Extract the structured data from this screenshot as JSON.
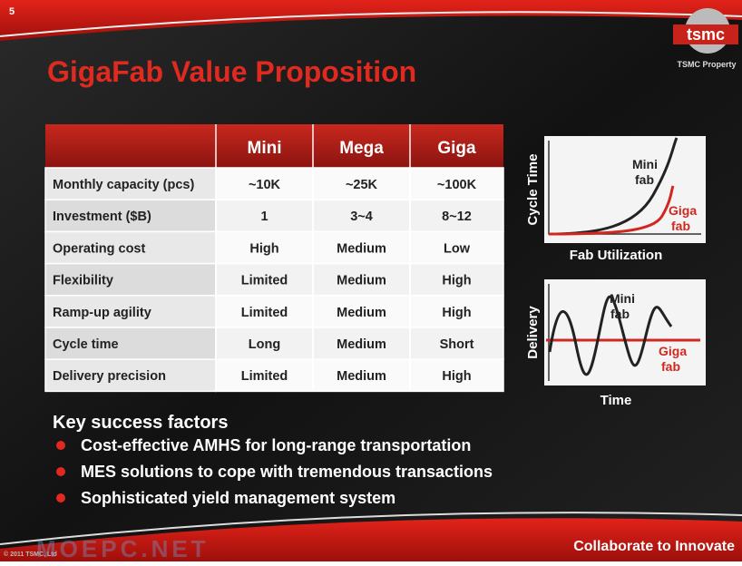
{
  "slide_number": "5",
  "logo": {
    "text": "tsmc",
    "caption": "TSMC Property"
  },
  "title": "GigaFab Value Proposition",
  "table": {
    "header": [
      "Mini",
      "Mega",
      "Giga"
    ],
    "rows": [
      [
        "Monthly capacity (pcs)",
        "~10K",
        "~25K",
        "~100K"
      ],
      [
        "Investment ($B)",
        "1",
        "3~4",
        "8~12"
      ],
      [
        "Operating cost",
        "High",
        "Medium",
        "Low"
      ],
      [
        "Flexibility",
        "Limited",
        "Medium",
        "High"
      ],
      [
        "Ramp-up agility",
        "Limited",
        "Medium",
        "High"
      ],
      [
        "Cycle time",
        "Long",
        "Medium",
        "Short"
      ],
      [
        "Delivery precision",
        "Limited",
        "Medium",
        "High"
      ]
    ]
  },
  "diagrams": [
    {
      "y_label": "Cycle Time",
      "x_label": "Fab Utilization",
      "mini_label": [
        "Mini",
        "fab"
      ],
      "giga_label": [
        "Giga",
        "fab"
      ]
    },
    {
      "y_label": "Delivery",
      "x_label": "Time",
      "mini_label": [
        "Mini",
        "fab"
      ],
      "giga_label": [
        "Giga",
        "fab"
      ]
    }
  ],
  "key_success": {
    "heading": "Key success factors",
    "bullets": [
      "Cost-effective AMHS for long-range transportation",
      "MES solutions to cope with tremendous transactions",
      "Sophisticated yield management system"
    ]
  },
  "footer": {
    "tagline": "Collaborate to Innovate",
    "copyright": "© 2011 TSMC, Ltd",
    "watermark": "MOEPC.NET"
  }
}
